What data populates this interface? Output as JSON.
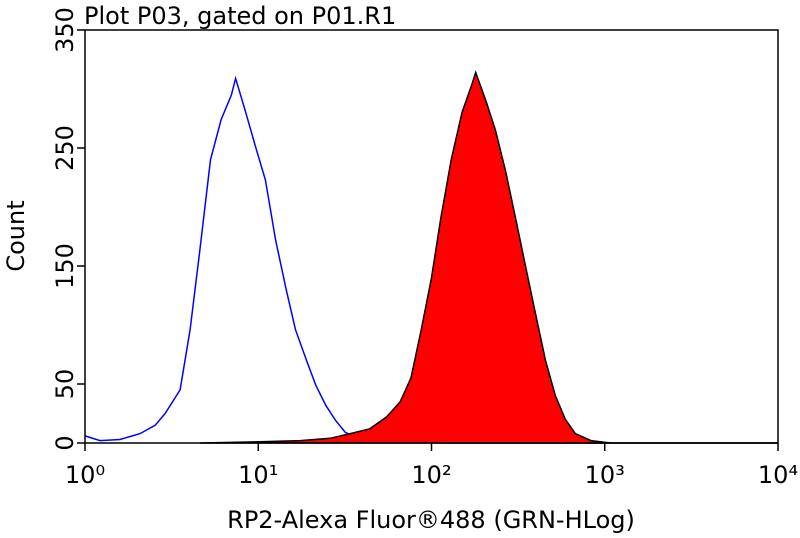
{
  "chart_data": {
    "type": "histogram",
    "title": "Plot P03, gated on P01.R1",
    "xlabel": "RP2-Alexa Fluor®488 (GRN-HLog)",
    "ylabel": "Count",
    "xscale": "log",
    "xlim": [
      1,
      10000
    ],
    "ylim": [
      0,
      350
    ],
    "xticks": [
      {
        "value": 1,
        "label": "10⁰"
      },
      {
        "value": 10,
        "label": "10¹"
      },
      {
        "value": 100,
        "label": "10²"
      },
      {
        "value": 1000,
        "label": "10³"
      },
      {
        "value": 10000,
        "label": "10⁴"
      }
    ],
    "yticks": [
      0,
      50,
      150,
      250,
      350
    ],
    "series": [
      {
        "color": "#0000ff",
        "fill": "none",
        "x": [
          1,
          1.22,
          1.59,
          2.08,
          2.54,
          2.9,
          3.54,
          4.04,
          4.6,
          5.3,
          6.1,
          7.0,
          7.4,
          8.4,
          9.6,
          11.0,
          12.6,
          14.5,
          16.4,
          19,
          21.5,
          24.5,
          28,
          31.8,
          38.9,
          50.6,
          125,
          945,
          10000
        ],
        "values": [
          6,
          2,
          3,
          8,
          15,
          25,
          45,
          96,
          163,
          240,
          274,
          295,
          309,
          282,
          252,
          223,
          172,
          130,
          96,
          70,
          49,
          32,
          19,
          9,
          4,
          1,
          0,
          0,
          0
        ]
      },
      {
        "color": "#000000",
        "fill": "#ff0000",
        "x": [
          4.6,
          10.2,
          17.5,
          26,
          34,
          44,
          55,
          66,
          76,
          87,
          100,
          113,
          130,
          150,
          172,
          180,
          206,
          234,
          268,
          306,
          349,
          398,
          455,
          519,
          593,
          676,
          833,
          1082,
          10000
        ],
        "values": [
          0,
          1,
          2,
          4,
          8,
          12,
          22,
          35,
          55,
          95,
          140,
          190,
          240,
          280,
          305,
          314,
          290,
          265,
          230,
          190,
          150,
          110,
          70,
          40,
          20,
          8,
          2,
          0,
          0
        ]
      }
    ]
  }
}
